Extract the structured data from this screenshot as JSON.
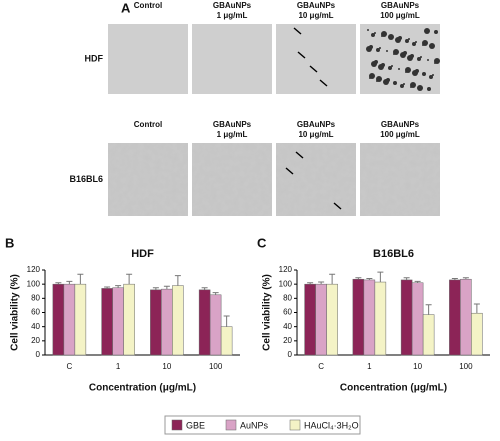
{
  "panel_a": {
    "label": "A",
    "columns": [
      [
        "Control"
      ],
      [
        "GBAuNPs",
        "1 μg/mL"
      ],
      [
        "GBAuNPs",
        "10 μg/mL"
      ],
      [
        "GBAuNPs",
        "100 μg/mL"
      ]
    ],
    "rows": [
      "HDF",
      "B16BL6"
    ]
  },
  "legend": [
    {
      "name": "GBE",
      "color": "#8c2457"
    },
    {
      "name": "AuNPs",
      "color": "#d9a3c6"
    },
    {
      "name": "HAuCl₄·3H₂O",
      "color": "#f4f3c6"
    }
  ],
  "chart_data": [
    {
      "type": "bar",
      "panel_label": "B",
      "title": "HDF",
      "x_label": "Concentration (μg/mL)",
      "y_label": "Cell viability (%)",
      "categories": [
        "C",
        "1",
        "10",
        "100"
      ],
      "ylim": [
        0,
        120
      ],
      "yticks": [
        0,
        20,
        40,
        60,
        80,
        100,
        120
      ],
      "series": [
        {
          "values": [
            100,
            94,
            92,
            92
          ],
          "errors": [
            2,
            2,
            3,
            3
          ]
        },
        {
          "values": [
            100,
            95,
            93,
            85
          ],
          "errors": [
            4,
            3,
            4,
            3
          ]
        },
        {
          "values": [
            100,
            100,
            98,
            40
          ],
          "errors": [
            14,
            14,
            14,
            15
          ]
        }
      ]
    },
    {
      "type": "bar",
      "panel_label": "C",
      "title": "B16BL6",
      "x_label": "Concentration (μg/mL)",
      "y_label": "Cell viability (%)",
      "categories": [
        "C",
        "1",
        "10",
        "100"
      ],
      "ylim": [
        0,
        120
      ],
      "yticks": [
        0,
        20,
        40,
        60,
        80,
        100,
        120
      ],
      "series": [
        {
          "values": [
            100,
            107,
            106,
            106
          ],
          "errors": [
            2,
            2,
            3,
            2
          ]
        },
        {
          "values": [
            100,
            106,
            102,
            107
          ],
          "errors": [
            3,
            2,
            2,
            2
          ]
        },
        {
          "values": [
            100,
            103,
            57,
            59
          ],
          "errors": [
            14,
            14,
            14,
            13
          ]
        }
      ]
    }
  ]
}
